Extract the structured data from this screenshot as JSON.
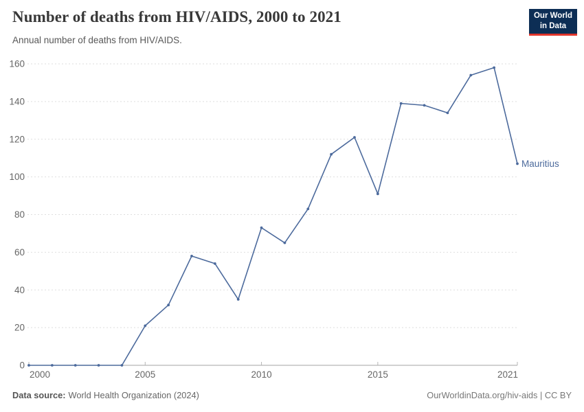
{
  "header": {
    "title": "Number of deaths from HIV/AIDS, 2000 to 2021",
    "subtitle": "Annual number of deaths from HIV/AIDS.",
    "logo": {
      "line1": "Our World",
      "line2": "in Data",
      "bg_color": "#0d2e55",
      "accent_color": "#e0352b"
    }
  },
  "chart_data": {
    "type": "line",
    "title": "Number of deaths from HIV/AIDS, 2000 to 2021",
    "xlabel": "",
    "ylabel": "",
    "xlim": [
      2000,
      2021
    ],
    "ylim": [
      0,
      160
    ],
    "x_ticks": [
      2000,
      2005,
      2010,
      2015,
      2021
    ],
    "y_ticks": [
      0,
      20,
      40,
      60,
      80,
      100,
      120,
      140,
      160
    ],
    "grid": "horizontal-dashed",
    "legend_position": "end-of-line-label",
    "series": [
      {
        "name": "Mauritius",
        "color": "#4C6A9C",
        "x": [
          2000,
          2001,
          2002,
          2003,
          2004,
          2005,
          2006,
          2007,
          2008,
          2009,
          2010,
          2011,
          2012,
          2013,
          2014,
          2015,
          2016,
          2017,
          2018,
          2019,
          2020,
          2021
        ],
        "values": [
          0,
          0,
          0,
          0,
          0,
          21,
          32,
          58,
          54,
          35,
          73,
          65,
          83,
          112,
          121,
          91,
          139,
          138,
          134,
          154,
          158,
          107
        ]
      }
    ],
    "colors": {
      "gridline": "#dedede",
      "axis_line": "#a3a3a3",
      "tick_label": "#666666"
    }
  },
  "footer": {
    "source_label": "Data source:",
    "source_text": "World Health Organization (2024)",
    "right_text": "OurWorldinData.org/hiv-aids | CC BY"
  }
}
